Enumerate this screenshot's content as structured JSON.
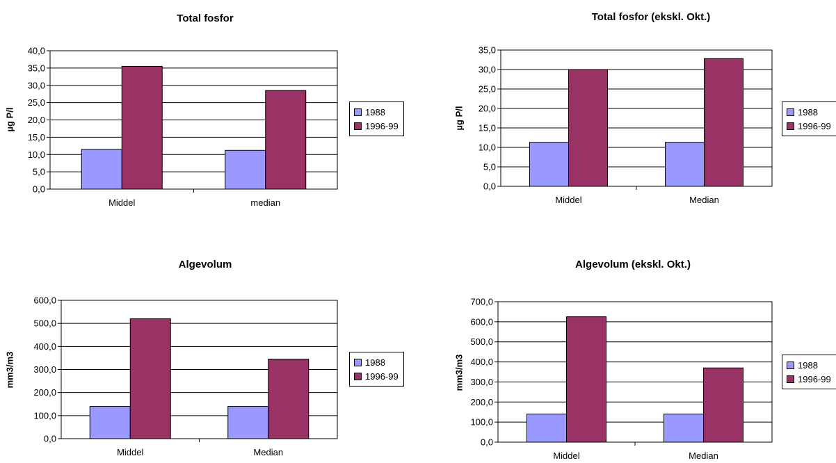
{
  "colors": {
    "series_1988": "#9999FF",
    "series_199699": "#993366",
    "grid": "#000000"
  },
  "chart_data": [
    {
      "type": "bar",
      "title": "Total fosfor",
      "ylabel": "µg P/l",
      "xlabel": "",
      "categories": [
        "Middel",
        "median"
      ],
      "series": [
        {
          "name": "1988",
          "values": [
            11.5,
            11.2
          ]
        },
        {
          "name": "1996-99",
          "values": [
            35.5,
            28.5
          ]
        }
      ],
      "ylim": [
        0,
        40
      ],
      "yticks": [
        "0,0",
        "5,0",
        "10,0",
        "15,0",
        "20,0",
        "25,0",
        "30,0",
        "35,0",
        "40,0"
      ],
      "grid": true,
      "legend": "right"
    },
    {
      "type": "bar",
      "title": "Total fosfor (ekskl. Okt.)",
      "ylabel": "µg P/l",
      "xlabel": "",
      "categories": [
        "Middel",
        "Median"
      ],
      "series": [
        {
          "name": "1988",
          "values": [
            11.3,
            11.3
          ]
        },
        {
          "name": "1996-99",
          "values": [
            30.0,
            32.8
          ]
        }
      ],
      "ylim": [
        0,
        35
      ],
      "yticks": [
        "0,0",
        "5,0",
        "10,0",
        "15,0",
        "20,0",
        "25,0",
        "30,0",
        "35,0"
      ],
      "grid": true,
      "legend": "right"
    },
    {
      "type": "bar",
      "title": "Algevolum",
      "ylabel": "mm3/m3",
      "xlabel": "",
      "categories": [
        "Middel",
        "Median"
      ],
      "series": [
        {
          "name": "1988",
          "values": [
            140,
            140
          ]
        },
        {
          "name": "1996-99",
          "values": [
            520,
            345
          ]
        }
      ],
      "ylim": [
        0,
        600
      ],
      "yticks": [
        "0,0",
        "100,0",
        "200,0",
        "300,0",
        "400,0",
        "500,0",
        "600,0"
      ],
      "grid": true,
      "legend": "right"
    },
    {
      "type": "bar",
      "title": "Algevolum (ekskl. Okt.)",
      "ylabel": "mm3/m3",
      "xlabel": "",
      "categories": [
        "Middel",
        "Median"
      ],
      "series": [
        {
          "name": "1988",
          "values": [
            140,
            140
          ]
        },
        {
          "name": "1996-99",
          "values": [
            625,
            370
          ]
        }
      ],
      "ylim": [
        0,
        700
      ],
      "yticks": [
        "0,0",
        "100,0",
        "200,0",
        "300,0",
        "400,0",
        "500,0",
        "600,0",
        "700,0"
      ],
      "grid": true,
      "legend": "right"
    }
  ]
}
